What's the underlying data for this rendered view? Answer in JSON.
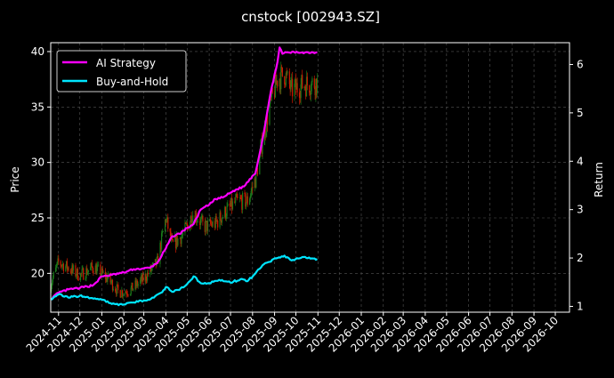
{
  "chart_data": {
    "type": "line",
    "title": "cnstock [002943.SZ]",
    "xlabel": "",
    "ylabel": "Price",
    "y2label": "Return",
    "x_ticks": [
      "2024-11",
      "2024-12",
      "2025-01",
      "2025-02",
      "2025-03",
      "2025-04",
      "2025-05",
      "2025-06",
      "2025-07",
      "2025-08",
      "2025-09",
      "2025-10",
      "2025-11",
      "2025-12",
      "2026-01",
      "2026-02",
      "2026-03",
      "2026-04",
      "2026-05",
      "2026-06",
      "2026-07",
      "2026-08",
      "2026-09",
      "2026-10"
    ],
    "x_range": [
      "2024-10-21",
      "2026-10-21"
    ],
    "ylim": [
      16.5,
      40.8
    ],
    "y_ticks": [
      20,
      25,
      30,
      35,
      40
    ],
    "y2lim": [
      0.88,
      6.45
    ],
    "y2_ticks": [
      1,
      2,
      3,
      4,
      5,
      6
    ],
    "grid": true,
    "legend_position": "top-left",
    "background": "#000000",
    "price_candles": {
      "up_color": "#1a7a1a",
      "down_color": "#cc1a00",
      "range": {
        "start": "2024-10-21",
        "end": "2025-10-31"
      },
      "close_anchors": [
        [
          "2024-10-21",
          19.0
        ],
        [
          "2024-11-01",
          21.0
        ],
        [
          "2024-11-15",
          20.5
        ],
        [
          "2024-12-01",
          19.8
        ],
        [
          "2024-12-20",
          20.6
        ],
        [
          "2025-01-10",
          19.5
        ],
        [
          "2025-01-25",
          18.3
        ],
        [
          "2025-02-10",
          18.5
        ],
        [
          "2025-03-01",
          19.5
        ],
        [
          "2025-03-20",
          21.0
        ],
        [
          "2025-04-01",
          25.0
        ],
        [
          "2025-04-10",
          22.5
        ],
        [
          "2025-04-25",
          23.5
        ],
        [
          "2025-05-10",
          25.5
        ],
        [
          "2025-05-25",
          24.2
        ],
        [
          "2025-06-10",
          24.5
        ],
        [
          "2025-06-25",
          25.6
        ],
        [
          "2025-07-10",
          26.5
        ],
        [
          "2025-07-25",
          26.5
        ],
        [
          "2025-08-05",
          28.5
        ],
        [
          "2025-08-15",
          32.0
        ],
        [
          "2025-08-25",
          35.0
        ],
        [
          "2025-09-05",
          37.5
        ],
        [
          "2025-09-15",
          38.0
        ],
        [
          "2025-09-25",
          36.5
        ],
        [
          "2025-10-10",
          37.0
        ],
        [
          "2025-10-31",
          37.2
        ]
      ]
    },
    "series": [
      {
        "name": "AI Strategy",
        "axis": "right",
        "color": "#ff00ff",
        "points": [
          [
            "2024-10-21",
            1.15
          ],
          [
            "2024-11-01",
            1.28
          ],
          [
            "2024-11-15",
            1.35
          ],
          [
            "2024-12-01",
            1.38
          ],
          [
            "2024-12-20",
            1.44
          ],
          [
            "2025-01-01",
            1.62
          ],
          [
            "2025-01-15",
            1.65
          ],
          [
            "2025-02-01",
            1.7
          ],
          [
            "2025-02-15",
            1.77
          ],
          [
            "2025-03-01",
            1.78
          ],
          [
            "2025-03-10",
            1.8
          ],
          [
            "2025-03-20",
            1.9
          ],
          [
            "2025-04-01",
            2.2
          ],
          [
            "2025-04-10",
            2.45
          ],
          [
            "2025-04-20",
            2.5
          ],
          [
            "2025-05-01",
            2.62
          ],
          [
            "2025-05-10",
            2.7
          ],
          [
            "2025-05-20",
            3.0
          ],
          [
            "2025-06-01",
            3.1
          ],
          [
            "2025-06-10",
            3.22
          ],
          [
            "2025-06-20",
            3.25
          ],
          [
            "2025-07-01",
            3.35
          ],
          [
            "2025-07-10",
            3.42
          ],
          [
            "2025-07-20",
            3.48
          ],
          [
            "2025-08-01",
            3.7
          ],
          [
            "2025-08-05",
            3.75
          ],
          [
            "2025-08-15",
            4.45
          ],
          [
            "2025-08-25",
            5.3
          ],
          [
            "2025-09-01",
            5.8
          ],
          [
            "2025-09-05",
            6.05
          ],
          [
            "2025-09-08",
            6.35
          ],
          [
            "2025-09-12",
            6.22
          ],
          [
            "2025-09-20",
            6.25
          ],
          [
            "2025-10-10",
            6.25
          ],
          [
            "2025-10-31",
            6.25
          ]
        ]
      },
      {
        "name": "Buy-and-Hold",
        "axis": "right",
        "color": "#00e5ff",
        "points": [
          [
            "2024-10-21",
            1.15
          ],
          [
            "2024-11-01",
            1.25
          ],
          [
            "2024-11-15",
            1.18
          ],
          [
            "2024-12-01",
            1.22
          ],
          [
            "2024-12-20",
            1.16
          ],
          [
            "2025-01-01",
            1.14
          ],
          [
            "2025-01-15",
            1.05
          ],
          [
            "2025-02-01",
            1.04
          ],
          [
            "2025-02-15",
            1.08
          ],
          [
            "2025-03-01",
            1.12
          ],
          [
            "2025-03-15",
            1.18
          ],
          [
            "2025-03-25",
            1.28
          ],
          [
            "2025-04-01",
            1.4
          ],
          [
            "2025-04-10",
            1.3
          ],
          [
            "2025-04-20",
            1.34
          ],
          [
            "2025-05-01",
            1.46
          ],
          [
            "2025-05-10",
            1.62
          ],
          [
            "2025-05-20",
            1.48
          ],
          [
            "2025-06-01",
            1.48
          ],
          [
            "2025-06-15",
            1.55
          ],
          [
            "2025-07-01",
            1.49
          ],
          [
            "2025-07-15",
            1.56
          ],
          [
            "2025-07-25",
            1.52
          ],
          [
            "2025-08-05",
            1.68
          ],
          [
            "2025-08-15",
            1.85
          ],
          [
            "2025-08-25",
            1.92
          ],
          [
            "2025-09-05",
            2.0
          ],
          [
            "2025-09-15",
            2.05
          ],
          [
            "2025-09-25",
            1.95
          ],
          [
            "2025-10-10",
            2.02
          ],
          [
            "2025-10-31",
            1.98
          ]
        ]
      }
    ]
  }
}
